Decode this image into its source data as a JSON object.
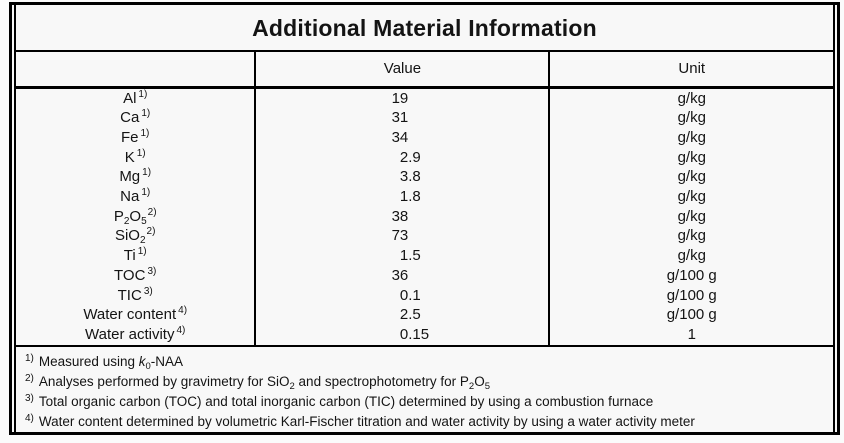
{
  "title": "Additional Material Information",
  "colors": {
    "background": "#f8f8f8",
    "page_background": "#fbfbfb",
    "border": "#000000",
    "text": "#141414"
  },
  "table": {
    "headers": {
      "parameter": "",
      "value": "Value",
      "unit": "Unit"
    },
    "rows": [
      {
        "name": "Al",
        "label": [
          {
            "t": "Al"
          }
        ],
        "note": "1)",
        "value": "19",
        "unit": "g/kg"
      },
      {
        "name": "Ca",
        "label": [
          {
            "t": "Ca"
          }
        ],
        "note": "1)",
        "value": "31",
        "unit": "g/kg"
      },
      {
        "name": "Fe",
        "label": [
          {
            "t": "Fe"
          }
        ],
        "note": "1)",
        "value": "34",
        "unit": "g/kg"
      },
      {
        "name": "K",
        "label": [
          {
            "t": "K"
          }
        ],
        "note": "1)",
        "value": "2.9",
        "unit": "g/kg"
      },
      {
        "name": "Mg",
        "label": [
          {
            "t": "Mg"
          }
        ],
        "note": "1)",
        "value": "3.8",
        "unit": "g/kg"
      },
      {
        "name": "Na",
        "label": [
          {
            "t": "Na"
          }
        ],
        "note": "1)",
        "value": "1.8",
        "unit": "g/kg"
      },
      {
        "name": "P2O5",
        "label": [
          {
            "t": "P"
          },
          {
            "t": "2",
            "s": "sub"
          },
          {
            "t": "O"
          },
          {
            "t": "5",
            "s": "sub"
          }
        ],
        "note": "2)",
        "value": "38",
        "unit": "g/kg"
      },
      {
        "name": "SiO2",
        "label": [
          {
            "t": "SiO"
          },
          {
            "t": "2",
            "s": "sub"
          }
        ],
        "note": "2)",
        "value": "73",
        "unit": "g/kg"
      },
      {
        "name": "Ti",
        "label": [
          {
            "t": "Ti"
          }
        ],
        "note": "1)",
        "value": "1.5",
        "unit": "g/kg"
      },
      {
        "name": "TOC",
        "label": [
          {
            "t": "TOC"
          }
        ],
        "note": "3)",
        "value": "36",
        "unit": "g/100 g"
      },
      {
        "name": "TIC",
        "label": [
          {
            "t": "TIC"
          }
        ],
        "note": "3)",
        "value": "0.1",
        "unit": "g/100 g"
      },
      {
        "name": "Water content",
        "label": [
          {
            "t": "Water content"
          }
        ],
        "note": "4)",
        "value": "2.5",
        "unit": "g/100 g"
      },
      {
        "name": "Water activity",
        "label": [
          {
            "t": "Water activity"
          }
        ],
        "note": "4)",
        "value": "0.15",
        "unit": "1"
      }
    ]
  },
  "footnotes": [
    {
      "marker": "1)",
      "segments": [
        {
          "t": "Measured using "
        },
        {
          "t": "k",
          "s": "i"
        },
        {
          "t": "0",
          "s": "sub"
        },
        {
          "t": "-NAA"
        }
      ]
    },
    {
      "marker": "2)",
      "segments": [
        {
          "t": "Analyses performed by gravimetry for SiO"
        },
        {
          "t": "2",
          "s": "sub"
        },
        {
          "t": " and spectrophotometry for P"
        },
        {
          "t": "2",
          "s": "sub"
        },
        {
          "t": "O"
        },
        {
          "t": "5",
          "s": "sub"
        }
      ]
    },
    {
      "marker": "3)",
      "segments": [
        {
          "t": "Total organic carbon (TOC) and total inorganic carbon (TIC) determined by using a combustion furnace"
        }
      ]
    },
    {
      "marker": "4)",
      "segments": [
        {
          "t": "Water content determined by volumetric Karl-Fischer titration and water activity by using a water activity meter"
        }
      ]
    }
  ]
}
